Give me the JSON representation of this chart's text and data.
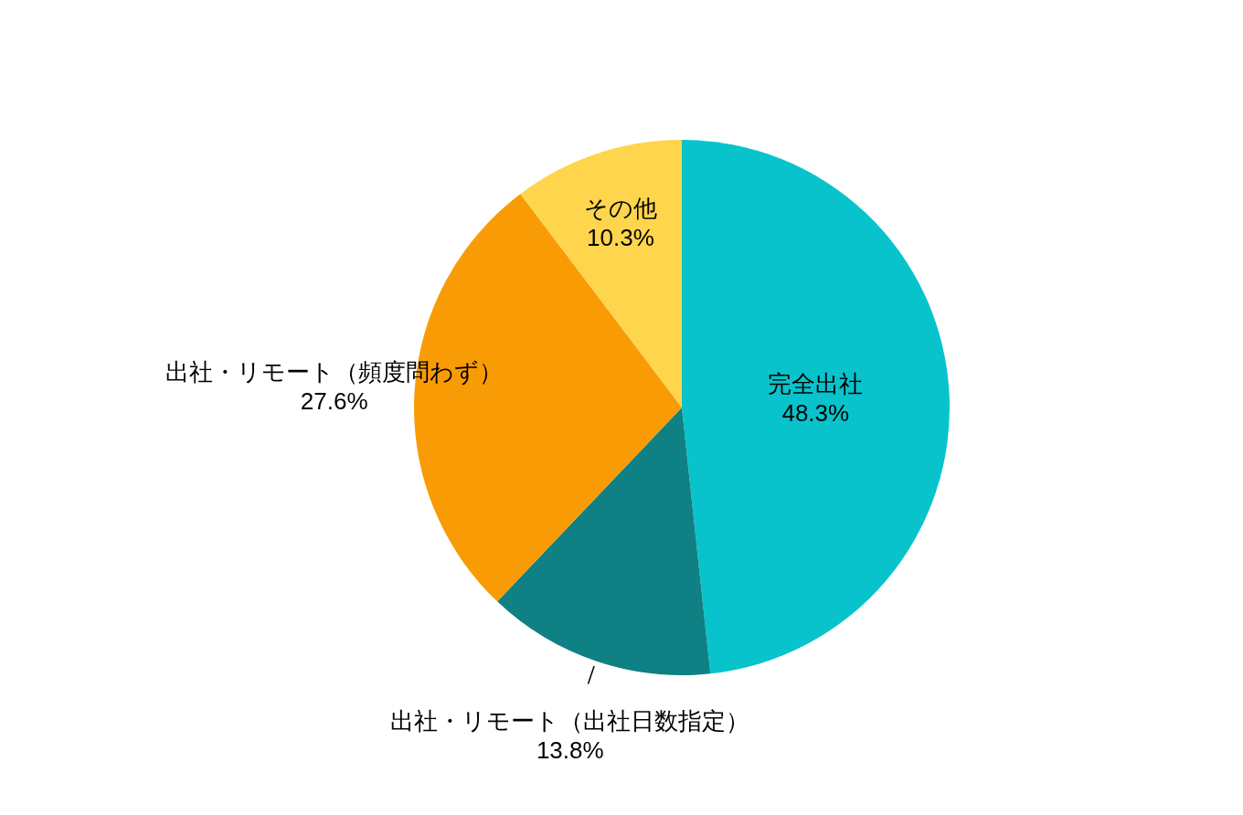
{
  "chart_data": {
    "type": "pie",
    "categories": [
      "完全出社",
      "出社・リモート（出社日数指定）",
      "出社・リモート（頻度問わず）",
      "その他"
    ],
    "values": [
      48.3,
      13.8,
      27.6,
      10.3
    ],
    "value_labels": [
      "48.3%",
      "13.8%",
      "27.6%",
      "10.3%"
    ],
    "colors": [
      "#08c3cc",
      "#0f8083",
      "#f99b05",
      "#fed54c"
    ],
    "legend": false
  }
}
